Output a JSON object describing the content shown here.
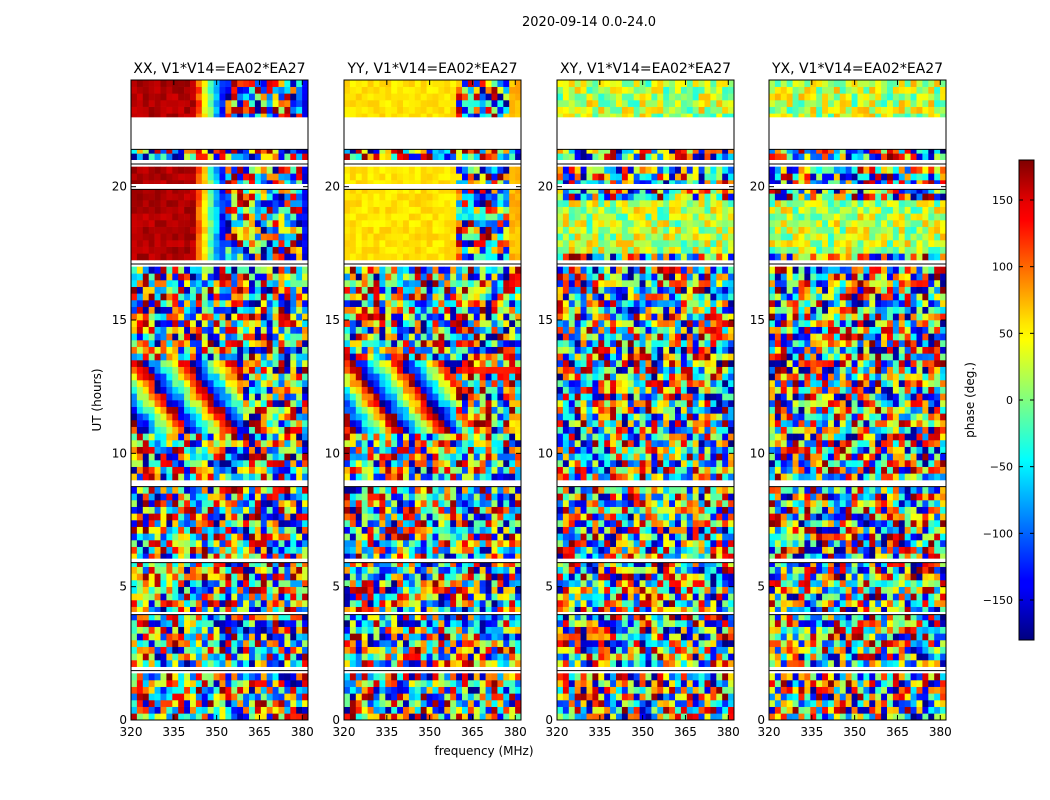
{
  "chart_data": {
    "type": "heatmap",
    "title": "2020-09-14 0.0-24.0",
    "xlabel": "frequency (MHz)",
    "ylabel": "UT (hours)",
    "xlim": [
      320,
      382
    ],
    "ylim": [
      0,
      24
    ],
    "xticks": [
      320,
      335,
      350,
      365,
      380
    ],
    "yticks": [
      0,
      5,
      10,
      15,
      20
    ],
    "panels": [
      {
        "title": "XX, V1*V14=EA02*EA27",
        "pol": "XX"
      },
      {
        "title": "YY, V1*V14=EA02*EA27",
        "pol": "YY"
      },
      {
        "title": "XY, V1*V14=EA02*EA27",
        "pol": "XY"
      },
      {
        "title": "YX, V1*V14=EA02*EA27",
        "pol": "YX"
      }
    ],
    "colorbar": {
      "label": "phase (deg.)",
      "range": [
        -180,
        180
      ],
      "ticks": [
        150,
        100,
        50,
        0,
        -50,
        -100,
        -150
      ],
      "tick_labels": [
        "150",
        "100",
        "50",
        "0",
        "−50",
        "−100",
        "−150"
      ],
      "colormap": "jet"
    },
    "flagged_hours": [
      [
        21.4,
        22.6
      ],
      [
        20.85,
        21.0
      ],
      [
        19.9,
        20.1
      ],
      [
        17.1,
        17.2
      ],
      [
        8.75,
        8.9
      ],
      [
        5.9,
        6.05
      ],
      [
        3.95,
        4.05
      ],
      [
        1.85,
        1.95
      ]
    ]
  }
}
